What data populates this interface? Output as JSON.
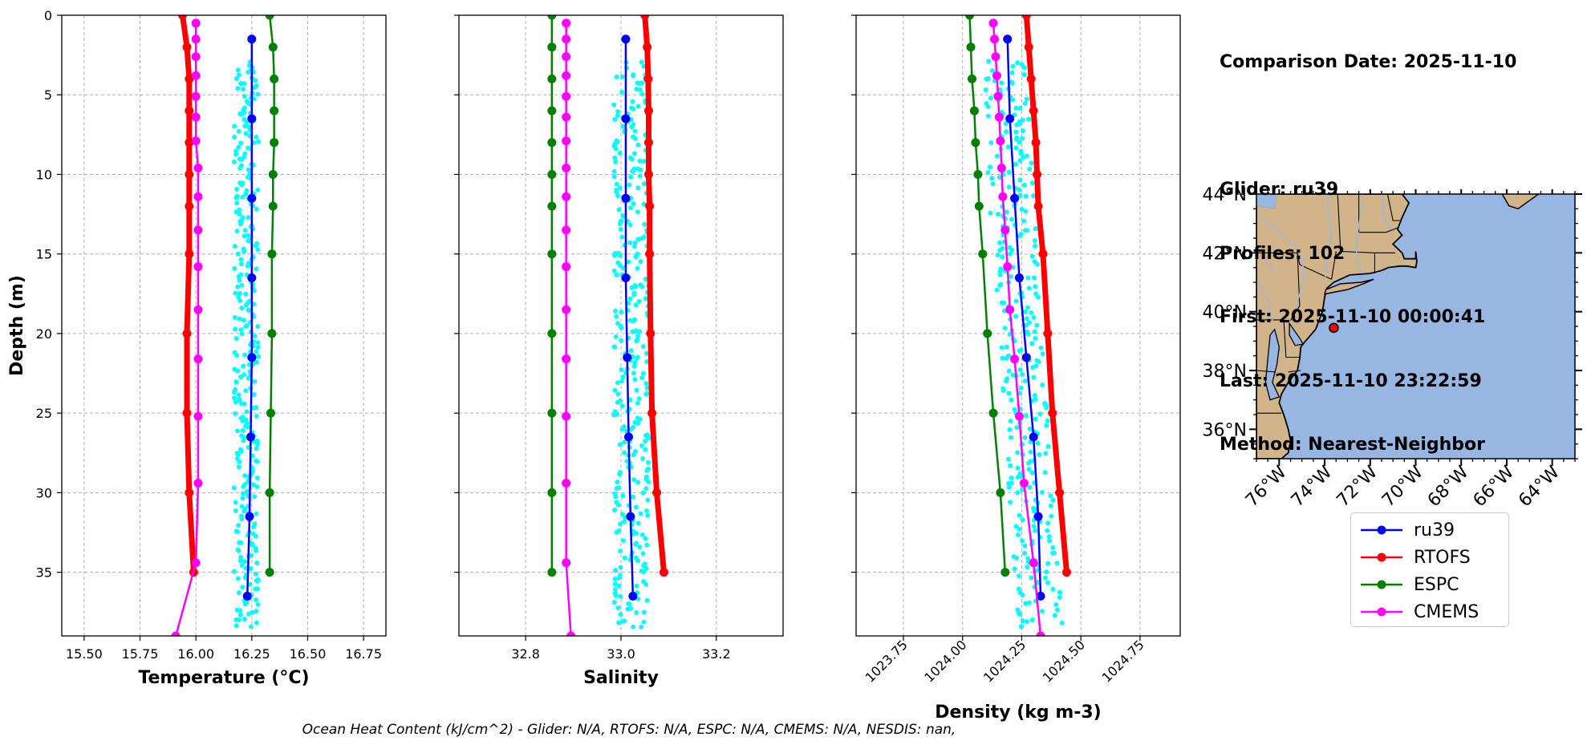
{
  "info": {
    "lines": [
      "Comparison Date: 2025-11-10",
      "",
      "Glider: ru39",
      "Profiles: 102",
      "First: 2025-11-10 00:00:41",
      "Last: 2025-11-10 23:22:59",
      "Method: Nearest-Neighbor"
    ]
  },
  "footer": "Ocean Heat Content (kJ/cm^2) - Glider: N/A,  RTOFS: N/A,  ESPC: N/A,  CMEMS: N/A,  NESDIS: nan,",
  "colors": {
    "ru39": "#0000ff",
    "rtofs": "#ff0000",
    "espc": "#008000",
    "cmems": "#ff00ff",
    "glider_raw": "#00ffff"
  },
  "chart_data": [
    {
      "type": "line",
      "xlabel": "Temperature (°C)",
      "ylabel": "Depth (m)",
      "xlim": [
        15.4,
        16.85
      ],
      "ylim": [
        39,
        0
      ],
      "xticks": [
        "15.50",
        "15.75",
        "16.00",
        "16.25",
        "16.50",
        "16.75"
      ],
      "yticks": [
        "0",
        "5",
        "10",
        "15",
        "20",
        "25",
        "30",
        "35"
      ],
      "grid": true,
      "glider_raw_x_range": [
        16.17,
        16.28
      ],
      "series": [
        {
          "name": "ru39",
          "depth": [
            1.5,
            6.5,
            11.5,
            16.5,
            21.5,
            26.5,
            31.5,
            36.5
          ],
          "values": [
            16.25,
            16.25,
            16.25,
            16.25,
            16.25,
            16.245,
            16.24,
            16.23
          ]
        },
        {
          "name": "RTOFS",
          "depth": [
            0,
            2,
            4,
            6,
            8,
            10,
            12,
            15,
            20,
            25,
            30,
            35
          ],
          "values": [
            15.94,
            15.96,
            15.97,
            15.97,
            15.97,
            15.97,
            15.97,
            15.97,
            15.96,
            15.96,
            15.97,
            15.99
          ]
        },
        {
          "name": "ESPC",
          "depth": [
            0,
            2,
            4,
            6,
            8,
            10,
            12,
            15,
            20,
            25,
            30,
            35
          ],
          "values": [
            16.33,
            16.345,
            16.35,
            16.35,
            16.35,
            16.345,
            16.345,
            16.34,
            16.34,
            16.335,
            16.33,
            16.33
          ]
        },
        {
          "name": "CMEMS",
          "depth": [
            0.5,
            1.5,
            2.6,
            3.8,
            5.1,
            6.4,
            7.9,
            9.6,
            11.4,
            13.5,
            15.8,
            18.5,
            21.6,
            25.2,
            29.4,
            34.4,
            39
          ],
          "values": [
            16.0,
            16.0,
            16.0,
            16.0,
            16.0,
            16.0,
            16.0,
            16.01,
            16.01,
            16.01,
            16.01,
            16.01,
            16.01,
            16.01,
            16.01,
            16.0,
            15.91
          ]
        }
      ]
    },
    {
      "type": "line",
      "xlabel": "Salinity",
      "xlim": [
        32.66,
        33.34
      ],
      "ylim": [
        39,
        0
      ],
      "xticks": [
        "32.8",
        "33.0",
        "33.2"
      ],
      "grid": true,
      "glider_raw_x_range": [
        32.985,
        33.06
      ],
      "series": [
        {
          "name": "ru39",
          "depth": [
            1.5,
            6.5,
            11.5,
            16.5,
            21.5,
            26.5,
            31.5,
            36.5
          ],
          "values": [
            33.01,
            33.01,
            33.01,
            33.01,
            33.013,
            33.016,
            33.02,
            33.025
          ]
        },
        {
          "name": "RTOFS",
          "depth": [
            0,
            2,
            4,
            6,
            8,
            10,
            12,
            15,
            20,
            25,
            30,
            35
          ],
          "values": [
            33.05,
            33.055,
            33.057,
            33.058,
            33.058,
            33.058,
            33.06,
            33.06,
            33.062,
            33.065,
            33.075,
            33.09
          ]
        },
        {
          "name": "ESPC",
          "depth": [
            0,
            2,
            4,
            6,
            8,
            10,
            12,
            15,
            20,
            25,
            30,
            35
          ],
          "values": [
            32.855,
            32.855,
            32.855,
            32.855,
            32.855,
            32.855,
            32.855,
            32.855,
            32.855,
            32.855,
            32.855,
            32.855
          ]
        },
        {
          "name": "CMEMS",
          "depth": [
            0.5,
            1.5,
            2.6,
            3.8,
            5.1,
            6.4,
            7.9,
            9.6,
            11.4,
            13.5,
            15.8,
            18.5,
            21.6,
            25.2,
            29.4,
            34.4,
            39
          ],
          "values": [
            32.885,
            32.885,
            32.885,
            32.885,
            32.885,
            32.885,
            32.885,
            32.885,
            32.885,
            32.885,
            32.885,
            32.885,
            32.885,
            32.885,
            32.885,
            32.885,
            32.895
          ]
        }
      ]
    },
    {
      "type": "line",
      "xlabel": "Density (kg m-3)",
      "xlim": [
        1023.55,
        1024.92
      ],
      "ylim": [
        39,
        0
      ],
      "xticks": [
        "1023.75",
        "1024.00",
        "1024.25",
        "1024.50",
        "1024.75"
      ],
      "grid": true,
      "glider_raw_x_range": [
        1024.16,
        1024.35
      ],
      "series": [
        {
          "name": "ru39",
          "depth": [
            1.5,
            6.5,
            11.5,
            16.5,
            21.5,
            26.5,
            31.5,
            36.5
          ],
          "values": [
            1024.19,
            1024.2,
            1024.22,
            1024.24,
            1024.27,
            1024.3,
            1024.32,
            1024.33
          ]
        },
        {
          "name": "RTOFS",
          "depth": [
            0,
            2,
            4,
            6,
            8,
            10,
            12,
            15,
            20,
            25,
            30,
            35
          ],
          "values": [
            1024.27,
            1024.28,
            1024.29,
            1024.3,
            1024.31,
            1024.315,
            1024.32,
            1024.34,
            1024.36,
            1024.38,
            1024.41,
            1024.44
          ]
        },
        {
          "name": "ESPC",
          "depth": [
            0,
            2,
            4,
            6,
            8,
            10,
            12,
            15,
            20,
            25,
            30,
            35
          ],
          "values": [
            1024.03,
            1024.035,
            1024.04,
            1024.05,
            1024.055,
            1024.065,
            1024.07,
            1024.085,
            1024.105,
            1024.13,
            1024.16,
            1024.18
          ]
        },
        {
          "name": "CMEMS",
          "depth": [
            0.5,
            1.5,
            2.6,
            3.8,
            5.1,
            6.4,
            7.9,
            9.6,
            11.4,
            13.5,
            15.8,
            18.5,
            21.6,
            25.2,
            29.4,
            34.4,
            39
          ],
          "values": [
            1024.13,
            1024.135,
            1024.14,
            1024.145,
            1024.15,
            1024.155,
            1024.16,
            1024.165,
            1024.17,
            1024.18,
            1024.19,
            1024.2,
            1024.22,
            1024.24,
            1024.26,
            1024.3,
            1024.33
          ]
        }
      ]
    }
  ],
  "map": {
    "lon_range": [
      -77,
      -63
    ],
    "lat_range": [
      35,
      44
    ],
    "xticks": [
      "76°W",
      "74°W",
      "72°W",
      "70°W",
      "68°W",
      "66°W",
      "64°W"
    ],
    "yticks": [
      "44°N",
      "42°N",
      "40°N",
      "38°N",
      "36°N"
    ],
    "glider_marker": {
      "lon": -73.6,
      "lat": 39.45
    }
  },
  "legend": {
    "entries": [
      "ru39",
      "RTOFS",
      "ESPC",
      "CMEMS"
    ]
  }
}
